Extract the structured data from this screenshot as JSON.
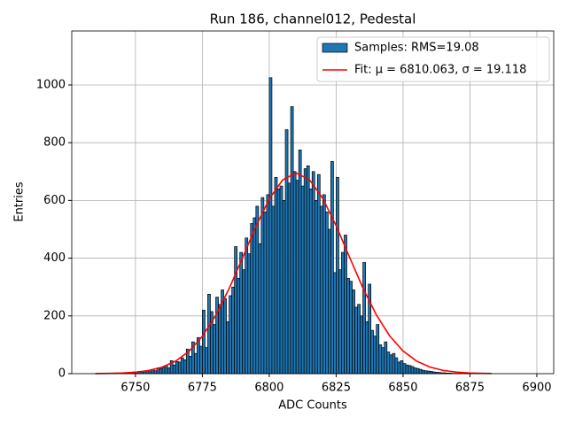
{
  "chart_data": {
    "type": "histogram",
    "title": "Run 186, channel012, Pedestal",
    "xlabel": "ADC Counts",
    "ylabel": "Entries",
    "xlim": [
      6726.2,
      6906.3
    ],
    "ylim": [
      0,
      1187
    ],
    "xticks": [
      6750,
      6775,
      6800,
      6825,
      6850,
      6875,
      6900
    ],
    "yticks": [
      0,
      200,
      400,
      600,
      800,
      1000
    ],
    "grid": true,
    "legend": "upper right",
    "series": [
      {
        "name": "Samples: RMS=19.08",
        "type": "histogram",
        "color": "#1f77b4",
        "edgecolor": "#000000",
        "bins": [
          6745,
          6746,
          6747,
          6748,
          6749,
          6750,
          6751,
          6752,
          6753,
          6754,
          6755,
          6756,
          6757,
          6758,
          6759,
          6760,
          6761,
          6762,
          6763,
          6764,
          6765,
          6766,
          6767,
          6768,
          6769,
          6770,
          6771,
          6772,
          6773,
          6774,
          6775,
          6776,
          6777,
          6778,
          6779,
          6780,
          6781,
          6782,
          6783,
          6784,
          6785,
          6786,
          6787,
          6788,
          6789,
          6790,
          6791,
          6792,
          6793,
          6794,
          6795,
          6796,
          6797,
          6798,
          6799,
          6800,
          6801,
          6802,
          6803,
          6804,
          6805,
          6806,
          6807,
          6808,
          6809,
          6810,
          6811,
          6812,
          6813,
          6814,
          6815,
          6816,
          6817,
          6818,
          6819,
          6820,
          6821,
          6822,
          6823,
          6824,
          6825,
          6826,
          6827,
          6828,
          6829,
          6830,
          6831,
          6832,
          6833,
          6834,
          6835,
          6836,
          6837,
          6838,
          6839,
          6840,
          6841,
          6842,
          6843,
          6844,
          6845,
          6846,
          6847,
          6848,
          6849,
          6850,
          6851,
          6852,
          6853,
          6854,
          6855,
          6856,
          6857,
          6858,
          6859,
          6860,
          6861,
          6862,
          6863,
          6864,
          6865,
          6866,
          6867,
          6868,
          6869,
          6870,
          6871,
          6872,
          6873,
          6874,
          6875
        ],
        "values": [
          2,
          3,
          2,
          4,
          6,
          5,
          8,
          6,
          9,
          10,
          12,
          15,
          10,
          20,
          18,
          22,
          28,
          20,
          45,
          30,
          42,
          40,
          55,
          48,
          85,
          60,
          110,
          70,
          125,
          95,
          220,
          90,
          275,
          215,
          170,
          265,
          240,
          290,
          260,
          180,
          270,
          300,
          440,
          330,
          420,
          360,
          470,
          415,
          520,
          540,
          580,
          450,
          610,
          560,
          620,
          1025,
          580,
          680,
          640,
          650,
          600,
          845,
          660,
          925,
          700,
          670,
          775,
          650,
          710,
          720,
          640,
          700,
          600,
          690,
          580,
          620,
          560,
          500,
          735,
          350,
          680,
          360,
          420,
          480,
          330,
          320,
          290,
          230,
          240,
          200,
          385,
          180,
          310,
          150,
          130,
          170,
          100,
          90,
          110,
          75,
          65,
          70,
          55,
          40,
          45,
          35,
          30,
          28,
          25,
          20,
          18,
          15,
          12,
          10,
          9,
          8,
          6,
          5,
          4,
          3,
          3,
          2,
          2,
          1,
          1,
          1,
          1,
          0,
          1,
          1
        ]
      },
      {
        "name": "Fit: μ = 6810.063, σ = 19.118",
        "type": "line",
        "color": "#ff0000",
        "x": [
          6735,
          6740,
          6745,
          6750,
          6755,
          6760,
          6765,
          6770,
          6775,
          6780,
          6785,
          6790,
          6795,
          6800,
          6805,
          6810,
          6815,
          6820,
          6825,
          6830,
          6835,
          6840,
          6845,
          6850,
          6855,
          6860,
          6865,
          6870,
          6875,
          6880,
          6883
        ],
        "values": [
          0.31,
          0.84,
          2.1,
          5.0,
          11.0,
          22.5,
          43.2,
          77.4,
          129.3,
          201.9,
          294.4,
          400.7,
          509.6,
          605.1,
          671.0,
          695,
          672.2,
          607.2,
          512.1,
          403.4,
          296.8,
          203.9,
          130.8,
          78.4,
          43.9,
          22.9,
          11.2,
          5.1,
          2.2,
          0.86,
          0.48
        ]
      }
    ]
  }
}
